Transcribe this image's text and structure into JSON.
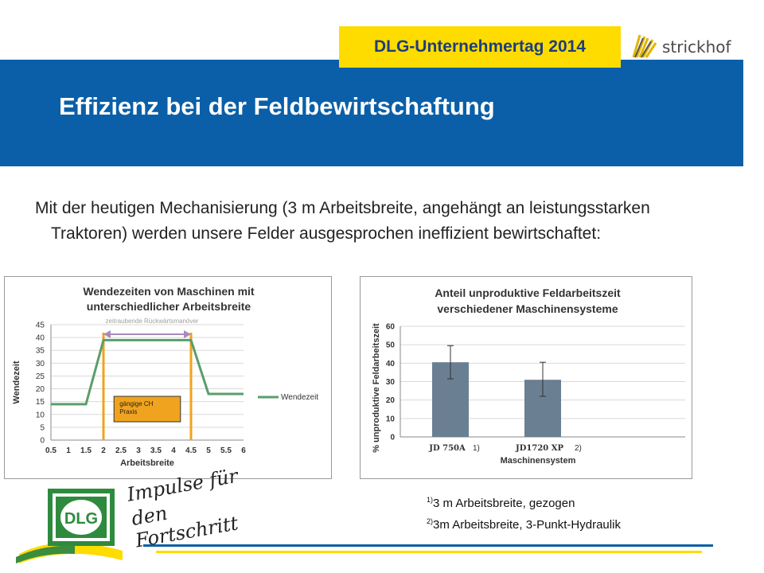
{
  "header": {
    "event_title": "DLG-Unternehmertag 2014",
    "brand_name": "strickhof",
    "slide_title": "Effizienz bei der Feldbewirtschaftung"
  },
  "body": {
    "intro_text": "Mit der heutigen Mechanisierung (3 m Arbeitsbreite, angehängt an leistungsstarken Traktoren) werden unsere Felder ausgesprochen ineffizient bewirtschaftet:"
  },
  "colors": {
    "banner": "#0a5fa8",
    "badge": "#fedc00",
    "line_series": "#5a9e6a",
    "bar_fill": "#6b7f93",
    "range_orange": "#f0a31e",
    "arrow_purple": "#a68bbd"
  },
  "chart_data": [
    {
      "type": "line",
      "title": "Wendezeiten von Maschinen mit unterschiedlicher Arbeitsbreite",
      "xlabel": "Arbeitsbreite",
      "ylabel": "Wendezeit",
      "x_ticks": [
        "0.5",
        "1",
        "1.5",
        "2",
        "2.5",
        "3",
        "3.5",
        "4",
        "4.5",
        "5",
        "5.5",
        "6"
      ],
      "y_ticks": [
        "0",
        "5",
        "10",
        "15",
        "20",
        "25",
        "30",
        "35",
        "40",
        "45"
      ],
      "xlim": [
        0.5,
        6
      ],
      "ylim": [
        0,
        45
      ],
      "grid": true,
      "legend_position": "right",
      "series": [
        {
          "name": "Wendezeit",
          "x": [
            0.5,
            1,
            1.5,
            2,
            2.5,
            3,
            3.5,
            4,
            4.5,
            5,
            5.5,
            6
          ],
          "y": [
            14,
            14,
            14,
            39,
            39,
            39,
            39,
            39,
            39,
            18,
            18,
            18
          ]
        }
      ],
      "annotations": {
        "arrow_label": "zeitraubende Rückwärtsmanöver",
        "arrow_from_x": 2,
        "arrow_to_x": 4.5,
        "box_label_line1": "gängige CH",
        "box_label_line2": "Praxis",
        "vertical_lines_x": [
          2,
          4.5
        ]
      }
    },
    {
      "type": "bar",
      "title": "Anteil unproduktive Feldarbeitszeit verschiedener Maschinensysteme",
      "xlabel": "Maschinensystem",
      "ylabel": "% unproduktive Feldarbeitszeit",
      "y_ticks": [
        "0",
        "10",
        "20",
        "30",
        "40",
        "50",
        "60"
      ],
      "ylim": [
        0,
        60
      ],
      "grid": true,
      "categories": [
        "JD 750A",
        "JD1720 XP"
      ],
      "category_notes": [
        "1)",
        "2)"
      ],
      "values": [
        40.5,
        31
      ],
      "error_low": [
        31.5,
        22
      ],
      "error_high": [
        49.5,
        40.5
      ]
    }
  ],
  "footnotes": [
    {
      "mark": "1)",
      "text": "3 m Arbeitsbreite, gezogen"
    },
    {
      "mark": "2)",
      "text": "3m Arbeitsbreite, 3-Punkt-Hydraulik"
    }
  ],
  "logos": {
    "dlg_text": "DLG",
    "slogan_line1": "Impulse für",
    "slogan_line2": "den Fortschritt"
  }
}
